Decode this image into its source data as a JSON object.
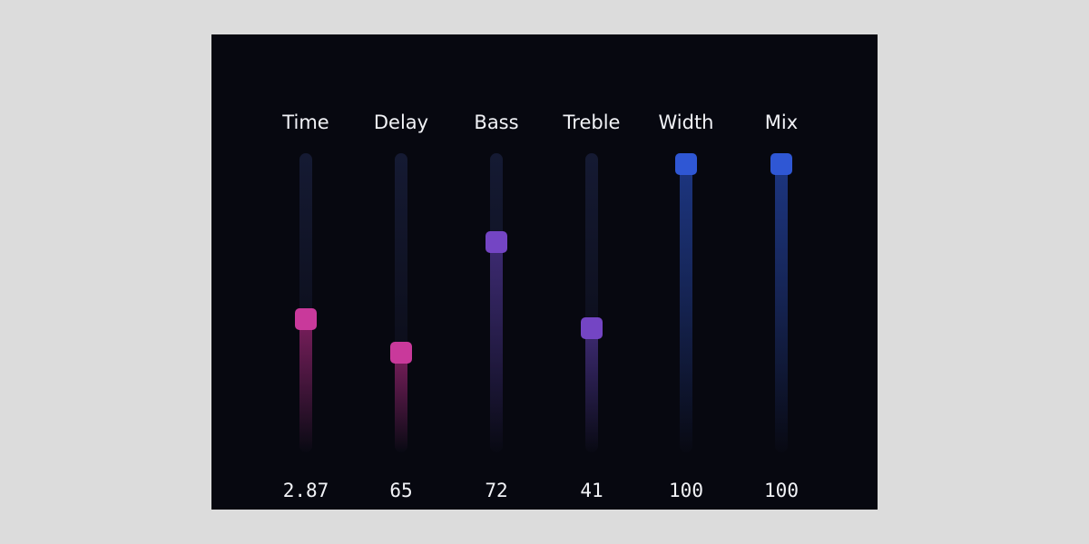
{
  "range": {
    "min": 0,
    "max": 100
  },
  "sliders": [
    {
      "label": "Time",
      "display": "2.87",
      "level": 0.44,
      "color": "#c9399b",
      "fill_color": "#7a1e5c"
    },
    {
      "label": "Delay",
      "display": "65",
      "level": 0.32,
      "color": "#c9399b",
      "fill_color": "#7a1e5c"
    },
    {
      "label": "Bass",
      "display": "72",
      "level": 0.72,
      "color": "#7445c4",
      "fill_color": "#3d2a72"
    },
    {
      "label": "Treble",
      "display": "41",
      "level": 0.41,
      "color": "#7445c4",
      "fill_color": "#3d2a72"
    },
    {
      "label": "Width",
      "display": "100",
      "level": 1.0,
      "color": "#2f57d4",
      "fill_color": "#1c3580"
    },
    {
      "label": "Mix",
      "display": "100",
      "level": 1.0,
      "color": "#2f57d4",
      "fill_color": "#1c3580"
    }
  ]
}
